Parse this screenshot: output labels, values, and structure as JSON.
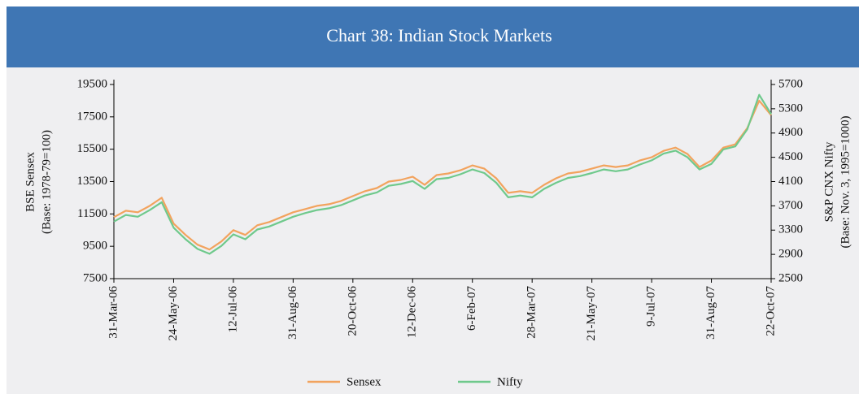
{
  "chart_data": {
    "type": "line",
    "title": "Chart 38: Indian Stock Markets",
    "ylabel": [
      "BSE Sensex",
      "(Base: 1978-79=100)"
    ],
    "y2label": [
      "S&P CNX Nifty",
      "(Base: Nov. 3, 1995=1000)"
    ],
    "categories": [
      "31-Mar-06",
      null,
      null,
      null,
      null,
      "24-May-06",
      null,
      null,
      null,
      null,
      "12-Jul-06",
      null,
      null,
      null,
      null,
      "31-Aug-06",
      null,
      null,
      null,
      null,
      "20-Oct-06",
      null,
      null,
      null,
      null,
      "12-Dec-06",
      null,
      null,
      null,
      null,
      "6-Feb-07",
      null,
      null,
      null,
      null,
      "28-Mar-07",
      null,
      null,
      null,
      null,
      "21-May-07",
      null,
      null,
      null,
      null,
      "9-Jul-07",
      null,
      null,
      null,
      null,
      "31-Aug-07",
      null,
      null,
      null,
      null,
      "22-Oct-07"
    ],
    "series": [
      {
        "name": "Sensex",
        "color": "#f2a35e",
        "values": [
          11300,
          11700,
          11600,
          12000,
          12500,
          10900,
          10200,
          9600,
          9300,
          9800,
          10500,
          10200,
          10800,
          11000,
          11300,
          11600,
          11800,
          12000,
          12100,
          12300,
          12600,
          12900,
          13100,
          13500,
          13600,
          13800,
          13300,
          13900,
          14000,
          14200,
          14500,
          14300,
          13700,
          12800,
          12900,
          12800,
          13300,
          13700,
          14000,
          14100,
          14300,
          14500,
          14400,
          14500,
          14800,
          15000,
          15400,
          15600,
          15200,
          14400,
          14800,
          15600,
          15800,
          16800,
          18500,
          17600
        ]
      },
      {
        "name": "Nifty",
        "color": "#6fc98c",
        "axis": "y2",
        "values": [
          3440,
          3550,
          3520,
          3630,
          3760,
          3340,
          3150,
          2990,
          2910,
          3040,
          3230,
          3150,
          3310,
          3360,
          3440,
          3520,
          3580,
          3630,
          3660,
          3710,
          3790,
          3870,
          3920,
          4030,
          4060,
          4110,
          3980,
          4140,
          4160,
          4220,
          4300,
          4240,
          4080,
          3840,
          3870,
          3840,
          3980,
          4080,
          4160,
          4190,
          4240,
          4300,
          4270,
          4300,
          4380,
          4450,
          4560,
          4610,
          4500,
          4300,
          4390,
          4630,
          4680,
          4960,
          5530,
          5210
        ]
      }
    ],
    "ylim": [
      7500,
      19500
    ],
    "yticks": [
      7500,
      9500,
      11500,
      13500,
      15500,
      17500,
      19500
    ],
    "y2lim": [
      2500,
      5700
    ],
    "y2ticks": [
      2500,
      2900,
      3300,
      3700,
      4100,
      4500,
      4900,
      5300,
      5700
    ],
    "legend": "bottom"
  }
}
